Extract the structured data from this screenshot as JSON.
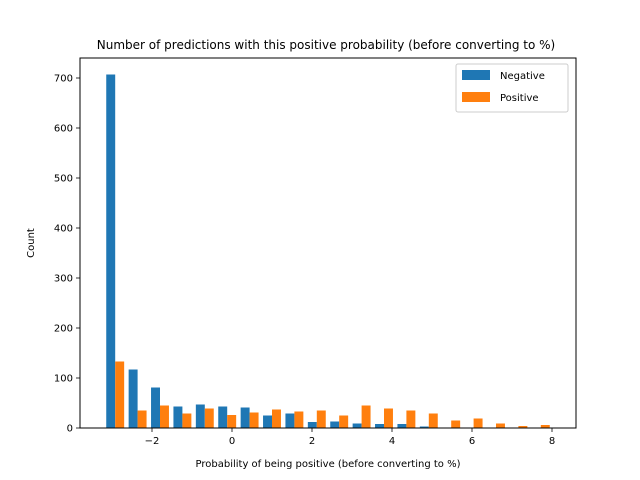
{
  "chart_data": {
    "type": "bar",
    "title": "Number of predictions with this positive probability (before converting to %)",
    "xlabel": "Probability of being positive (before converting to %)",
    "ylabel": "Count",
    "xlim": [
      -3.8,
      8.6
    ],
    "ylim": [
      0,
      740
    ],
    "xticks": [
      -2,
      0,
      2,
      4,
      6,
      8
    ],
    "xtick_labels": [
      "−2",
      "0",
      "2",
      "4",
      "6",
      "8"
    ],
    "yticks": [
      0,
      100,
      200,
      300,
      400,
      500,
      600,
      700
    ],
    "ytick_labels": [
      "0",
      "100",
      "200",
      "300",
      "400",
      "500",
      "600",
      "700"
    ],
    "grid": false,
    "legend_position": "top-right",
    "bin_edges": [
      -3.2,
      -2.64,
      -2.08,
      -1.52,
      -0.96,
      -0.4,
      0.16,
      0.72,
      1.28,
      1.84,
      2.4,
      2.96,
      3.52,
      4.08,
      4.64,
      5.2,
      5.76,
      6.32,
      6.88,
      7.44,
      8.0
    ],
    "series": [
      {
        "name": "Negative",
        "color": "#1f77b4",
        "values": [
          707,
          117,
          81,
          43,
          47,
          43,
          41,
          25,
          29,
          12,
          13,
          9,
          8,
          8,
          3,
          0,
          0,
          0,
          0,
          0
        ]
      },
      {
        "name": "Positive",
        "color": "#ff7f0e",
        "values": [
          133,
          35,
          45,
          29,
          39,
          26,
          31,
          37,
          33,
          35,
          25,
          45,
          39,
          35,
          29,
          15,
          19,
          9,
          4,
          6
        ]
      }
    ]
  }
}
